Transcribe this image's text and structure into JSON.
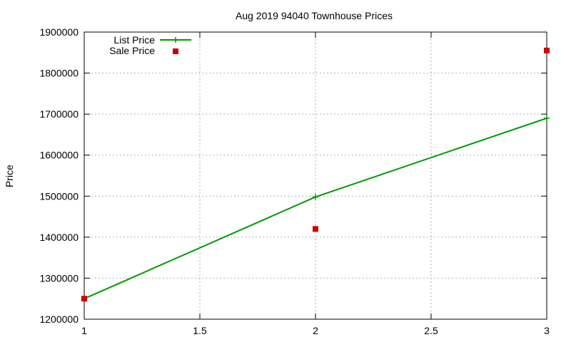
{
  "chart_data": {
    "type": "line",
    "title": "Aug 2019 94040 Townhouse Prices",
    "xlabel": "",
    "ylabel": "Price",
    "xlim": [
      1,
      3
    ],
    "ylim": [
      1200000,
      1900000
    ],
    "x_ticks": [
      "1",
      "1.5",
      "2",
      "2.5",
      "3"
    ],
    "y_ticks": [
      "1200000",
      "1300000",
      "1400000",
      "1500000",
      "1600000",
      "1700000",
      "1800000",
      "1900000"
    ],
    "grid": true,
    "legend_position": "top-left",
    "series": [
      {
        "name": "List Price",
        "style": "line+cross",
        "color": "#009900",
        "points": [
          {
            "x": 1,
            "y": 1250000
          },
          {
            "x": 2,
            "y": 1498000
          },
          {
            "x": 3,
            "y": 1690000
          }
        ]
      },
      {
        "name": "Sale Price",
        "style": "square-markers",
        "color": "#cc0000",
        "points": [
          {
            "x": 1,
            "y": 1250000
          },
          {
            "x": 2,
            "y": 1420000
          },
          {
            "x": 3,
            "y": 1855000
          }
        ]
      }
    ]
  }
}
